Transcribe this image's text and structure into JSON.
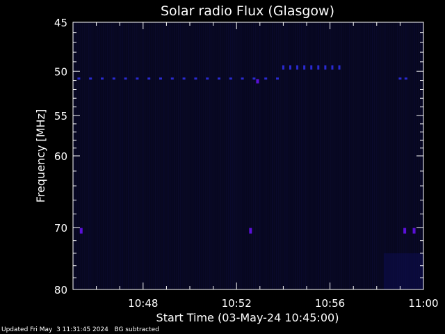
{
  "chart_data": {
    "type": "heatmap",
    "title": "Solar radio Flux (Glasgow)",
    "xlabel": "Start Time (03-May-24 10:45:00)",
    "ylabel": "Frequency [MHz]",
    "x_ticks": [
      "10:48",
      "10:52",
      "10:56",
      "11:00"
    ],
    "y_ticks": [
      "45",
      "50",
      "55",
      "60",
      "70",
      "80"
    ],
    "x_tick_minutes": [
      3,
      7,
      11,
      15
    ],
    "x_range_minutes": [
      0,
      15
    ],
    "y_ticks_mhz": [
      45,
      50,
      55,
      60,
      70,
      80
    ],
    "y_range_mhz": [
      45,
      80
    ],
    "y_scale": "log",
    "colors": {
      "background": "#000000",
      "plot_background": "#07071f",
      "axis": "#ffffff",
      "text": "#ffffff",
      "signal_weak": "#2a2ad0",
      "signal_strong": "#5a10d8"
    },
    "markers": {
      "band_51mhz": {
        "freq_mhz": 50.8,
        "times_min": [
          0.25,
          0.75,
          1.25,
          1.75,
          2.25,
          2.75,
          3.25,
          3.75,
          4.25,
          4.75,
          5.25,
          5.75,
          6.25,
          6.75,
          7.25,
          7.75,
          8.25,
          8.75,
          14.0,
          14.25
        ]
      },
      "band_49mhz": {
        "freq_mhz": 49.6,
        "times_min": [
          9.0,
          9.3,
          9.6,
          9.9,
          10.2,
          10.5,
          10.8,
          11.1,
          11.4
        ]
      },
      "band_70mhz": {
        "freq_mhz": 70.5,
        "times_min": [
          0.35,
          7.6,
          14.2,
          14.6
        ]
      },
      "isolated": [
        {
          "t": 7.9,
          "f": 51.1
        }
      ]
    }
  },
  "footer": {
    "updated": "Updated Fri May  3 11:31:45 2024",
    "note": "BG subtracted"
  }
}
